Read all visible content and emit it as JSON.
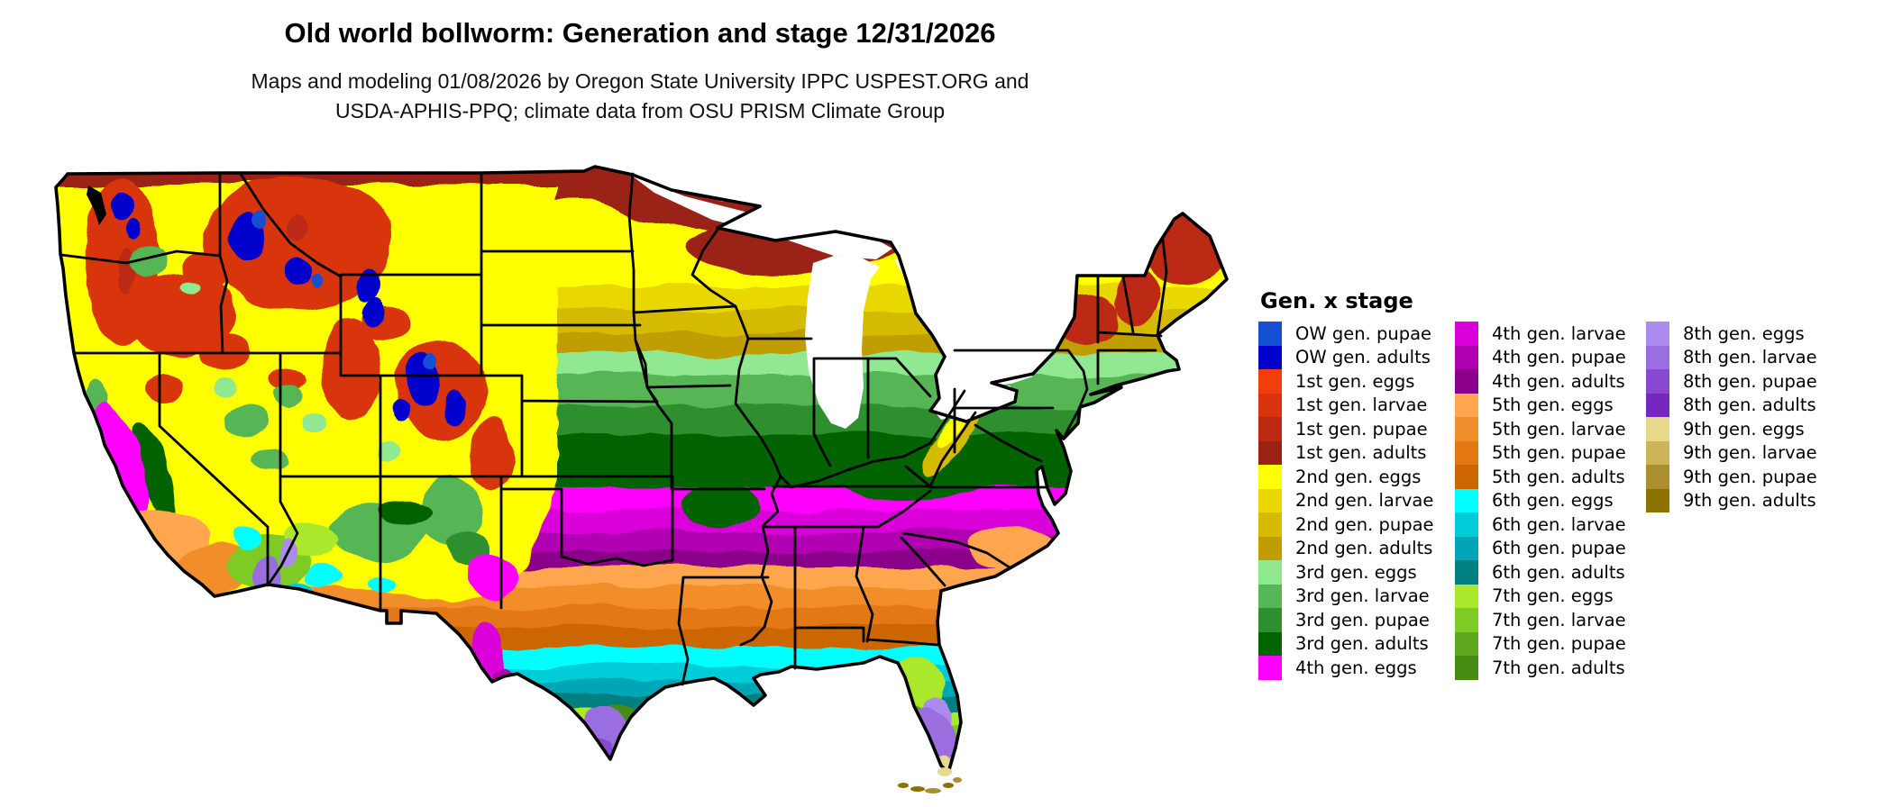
{
  "title": "Old world bollworm: Generation and stage 12/31/2026",
  "subtitle_line1": "Maps and modeling 01/08/2026 by Oregon State University IPPC USPEST.ORG and",
  "subtitle_line2": "USDA-APHIS-PPQ; climate data from OSU PRISM Climate Group",
  "map": {
    "region": "Continental United States",
    "type": "raster phenology map (generation x life stage)",
    "border_color": "#000000",
    "water_color": "#ffffff",
    "background_color": "#ffffff"
  },
  "legend": {
    "title": "Gen. x stage",
    "columns": [
      [
        {
          "label": "OW gen. pupae",
          "color": "#1550d2"
        },
        {
          "label": "OW gen. adults",
          "color": "#0000cc"
        },
        {
          "label": "1st gen. eggs",
          "color": "#f23d0d"
        },
        {
          "label": "1st gen. larvae",
          "color": "#d93410"
        },
        {
          "label": "1st gen. pupae",
          "color": "#bc2a12"
        },
        {
          "label": "1st gen. adults",
          "color": "#9b2016"
        },
        {
          "label": "2nd gen. eggs",
          "color": "#ffff00"
        },
        {
          "label": "2nd gen. larvae",
          "color": "#e9d800"
        },
        {
          "label": "2nd gen. pupae",
          "color": "#d4ba00"
        },
        {
          "label": "2nd gen. adults",
          "color": "#c09d00"
        },
        {
          "label": "3rd gen. eggs",
          "color": "#90e890"
        },
        {
          "label": "3rd gen. larvae",
          "color": "#57b657"
        },
        {
          "label": "3rd gen. pupae",
          "color": "#2e8f2e"
        },
        {
          "label": "3rd gen. adults",
          "color": "#006400"
        },
        {
          "label": "4th gen. eggs",
          "color": "#ff00ff"
        }
      ],
      [
        {
          "label": "4th gen. larvae",
          "color": "#d900d9"
        },
        {
          "label": "4th gen. pupae",
          "color": "#b100b1"
        },
        {
          "label": "4th gen. adults",
          "color": "#8b008b"
        },
        {
          "label": "5th gen. eggs",
          "color": "#ffa64f"
        },
        {
          "label": "5th gen. larvae",
          "color": "#f18e2c"
        },
        {
          "label": "5th gen. pupae",
          "color": "#e37813"
        },
        {
          "label": "5th gen. adults",
          "color": "#cc6600"
        },
        {
          "label": "6th gen. eggs",
          "color": "#00ffff"
        },
        {
          "label": "6th gen. larvae",
          "color": "#00ccd8"
        },
        {
          "label": "6th gen. pupae",
          "color": "#00a6b6"
        },
        {
          "label": "6th gen. adults",
          "color": "#008080"
        },
        {
          "label": "7th gen. eggs",
          "color": "#a9e82b"
        },
        {
          "label": "7th gen. larvae",
          "color": "#7ecb26"
        },
        {
          "label": "7th gen. pupae",
          "color": "#5fa81e"
        },
        {
          "label": "7th gen. adults",
          "color": "#478a12"
        }
      ],
      [
        {
          "label": "8th gen. eggs",
          "color": "#ab8cee"
        },
        {
          "label": "8th gen. larvae",
          "color": "#9a6ede"
        },
        {
          "label": "8th gen. pupae",
          "color": "#8849d0"
        },
        {
          "label": "8th gen. adults",
          "color": "#7527c0"
        },
        {
          "label": "9th gen. eggs",
          "color": "#e8da8c"
        },
        {
          "label": "9th gen. larvae",
          "color": "#cdb45a"
        },
        {
          "label": "9th gen. pupae",
          "color": "#ab8e2d"
        },
        {
          "label": "9th gen. adults",
          "color": "#8c7200"
        }
      ]
    ]
  }
}
